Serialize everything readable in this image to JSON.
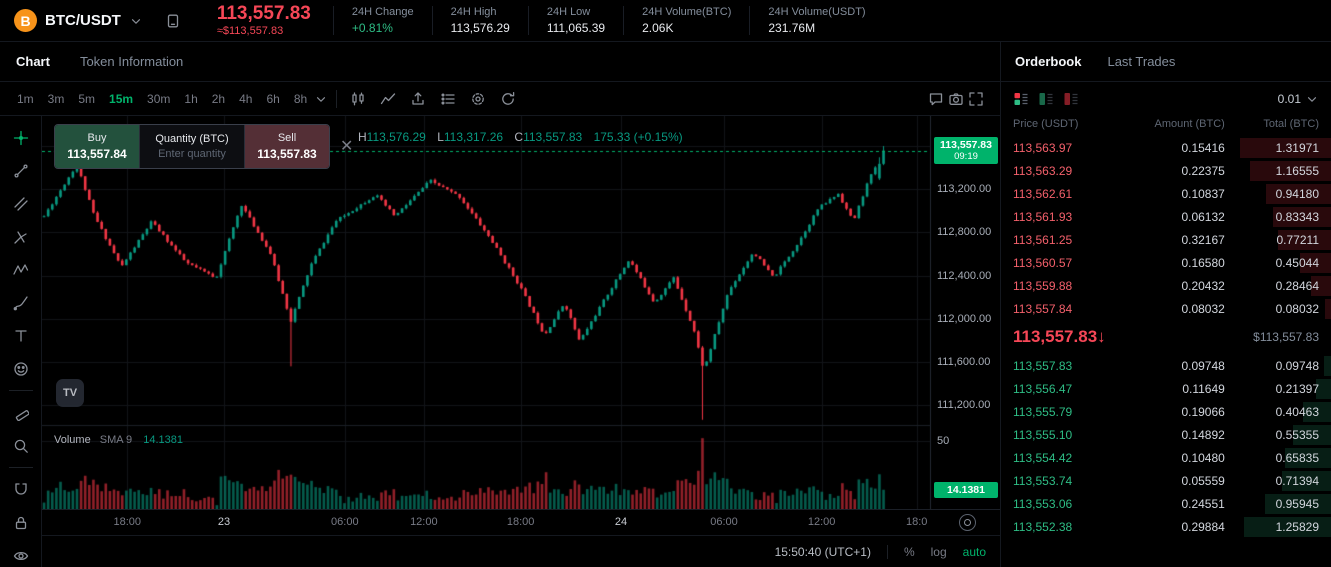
{
  "accent": "#00b36b",
  "colors": {
    "up": "#089981",
    "down": "#f23645",
    "red_text": "#f64757",
    "green_text": "#2ebd85"
  },
  "header": {
    "symbol": "BTC/USDT",
    "price": "113,557.83",
    "price_usd": "≈$113,557.83",
    "stats": [
      {
        "label": "24H Change",
        "value": "+0.81%",
        "tone": "green"
      },
      {
        "label": "24H High",
        "value": "113,576.29",
        "tone": "plain"
      },
      {
        "label": "24H Low",
        "value": "111,065.39",
        "tone": "plain"
      },
      {
        "label": "24H Volume(BTC)",
        "value": "2.06K",
        "tone": "plain"
      },
      {
        "label": "24H Volume(USDT)",
        "value": "231.76M",
        "tone": "plain"
      }
    ]
  },
  "tabs": {
    "chart": "Chart",
    "token_info": "Token Information",
    "orderbook": "Orderbook",
    "last_trades": "Last Trades"
  },
  "toolbar": {
    "timeframes": [
      "1m",
      "3m",
      "5m",
      "15m",
      "30m",
      "1h",
      "2h",
      "4h",
      "6h",
      "8h"
    ],
    "active_timeframe": "15m",
    "left_icons": [
      "candles",
      "indicators",
      "export",
      "layout-list",
      "gear",
      "refresh"
    ],
    "right_icons": [
      "chat",
      "snapshot",
      "fullscreen"
    ]
  },
  "drawing_tools": [
    "crosshair",
    "trend-line",
    "parallel-channel",
    "pitchfork",
    "xabcd-pattern",
    "brush",
    "text",
    "emoji",
    "ruler",
    "magnifier",
    "magnet",
    "lock",
    "eye"
  ],
  "chart": {
    "legend": {
      "h_label": "H",
      "h": "113,576.29",
      "l_label": "L",
      "l": "113,317.26",
      "c_label": "C",
      "c": "113,557.83",
      "change": "175.33 (+0.15%)"
    },
    "trade_widget": {
      "buy_label": "Buy",
      "buy_price": "113,557.84",
      "qty_label": "Quantity (BTC)",
      "qty_placeholder": "Enter quantity",
      "sell_label": "Sell",
      "sell_price": "113,557.83",
      "close": "✕"
    },
    "price_ticks": [
      {
        "p": 113200,
        "label": "113,200.00"
      },
      {
        "p": 112800,
        "label": "112,800.00"
      },
      {
        "p": 112400,
        "label": "112,400.00"
      },
      {
        "p": 112000,
        "label": "112,000.00"
      },
      {
        "p": 111600,
        "label": "111,600.00"
      },
      {
        "p": 111200,
        "label": "111,200.00"
      }
    ],
    "price_tag": {
      "price": "113,557.83",
      "time": "09:19"
    },
    "volume_legend": {
      "title": "Volume",
      "sub": "SMA 9",
      "value": "14.1381"
    },
    "volume_tick": {
      "v": 50,
      "label": "50"
    },
    "volume_tag": "14.1381",
    "time_ticks": [
      {
        "f": 0.096,
        "label": "18:00",
        "strong": false
      },
      {
        "f": 0.205,
        "label": "23",
        "strong": true
      },
      {
        "f": 0.341,
        "label": "06:00",
        "strong": false
      },
      {
        "f": 0.43,
        "label": "12:00",
        "strong": false
      },
      {
        "f": 0.539,
        "label": "18:00",
        "strong": false
      },
      {
        "f": 0.652,
        "label": "24",
        "strong": true
      },
      {
        "f": 0.768,
        "label": "06:00",
        "strong": false
      },
      {
        "f": 0.878,
        "label": "12:00",
        "strong": false
      },
      {
        "f": 0.985,
        "label": "18:0",
        "strong": false
      }
    ],
    "footer": {
      "clock": "15:50:40 (UTC+1)",
      "percent": "%",
      "log": "log",
      "auto": "auto"
    },
    "watermark": "TV"
  },
  "chart_data": {
    "type": "candlestick",
    "interval": "15m",
    "last_price": 113557.83,
    "last_open": 113435,
    "last_high": 113600,
    "last_volume": 14.1381,
    "price_range": [
      111054,
      113878
    ],
    "grid_prices": [
      113600,
      113200,
      112800,
      112400,
      112000,
      111600,
      111200
    ],
    "candle_count": 205,
    "price_path": [
      [
        0,
        112950
      ],
      [
        0.039,
        113430
      ],
      [
        0.06,
        112950
      ],
      [
        0.092,
        112480
      ],
      [
        0.128,
        112900
      ],
      [
        0.169,
        112520
      ],
      [
        0.205,
        112380
      ],
      [
        0.235,
        113060
      ],
      [
        0.27,
        112600
      ],
      [
        0.294,
        111980
      ],
      [
        0.318,
        112500
      ],
      [
        0.347,
        112900
      ],
      [
        0.395,
        113150
      ],
      [
        0.418,
        112950
      ],
      [
        0.46,
        113280
      ],
      [
        0.495,
        113130
      ],
      [
        0.531,
        112750
      ],
      [
        0.567,
        112300
      ],
      [
        0.596,
        111850
      ],
      [
        0.62,
        112150
      ],
      [
        0.638,
        111790
      ],
      [
        0.673,
        112250
      ],
      [
        0.697,
        112550
      ],
      [
        0.727,
        112150
      ],
      [
        0.75,
        112380
      ],
      [
        0.774,
        111900
      ],
      [
        0.786,
        111520
      ],
      [
        0.815,
        112250
      ],
      [
        0.845,
        112620
      ],
      [
        0.869,
        112380
      ],
      [
        0.898,
        112700
      ],
      [
        0.922,
        113020
      ],
      [
        0.946,
        113160
      ],
      [
        0.964,
        112900
      ],
      [
        0.981,
        113260
      ],
      [
        1,
        113557.83
      ]
    ],
    "wicks": [
      {
        "t": 0.786,
        "low": 111065.39
      },
      {
        "t": 0.294,
        "low": 111560
      },
      {
        "t": 0.039,
        "high": 113460
      }
    ],
    "vol_max": 58,
    "vol_spikes": [
      [
        0.02,
        20
      ],
      [
        0.294,
        25
      ],
      [
        0.531,
        16
      ],
      [
        0.596,
        27
      ],
      [
        0.638,
        18
      ],
      [
        0.786,
        52
      ],
      [
        0.922,
        14
      ],
      [
        0.981,
        18
      ]
    ]
  },
  "orderbook": {
    "precision": "0.01",
    "columns": [
      "Price (USDT)",
      "Amount (BTC)",
      "Total (BTC)"
    ],
    "asks": [
      [
        "113,563.97",
        "0.15416",
        "1.31971"
      ],
      [
        "113,563.29",
        "0.22375",
        "1.16555"
      ],
      [
        "113,562.61",
        "0.10837",
        "0.94180"
      ],
      [
        "113,561.93",
        "0.06132",
        "0.83343"
      ],
      [
        "113,561.25",
        "0.32167",
        "0.77211"
      ],
      [
        "113,560.57",
        "0.16580",
        "0.45044"
      ],
      [
        "113,559.88",
        "0.20432",
        "0.28464"
      ],
      [
        "113,557.84",
        "0.08032",
        "0.08032"
      ]
    ],
    "mid": {
      "price": "113,557.83",
      "arrow": "↓",
      "usd": "$113,557.83"
    },
    "bids": [
      [
        "113,557.83",
        "0.09748",
        "0.09748"
      ],
      [
        "113,556.47",
        "0.11649",
        "0.21397"
      ],
      [
        "113,555.79",
        "0.19066",
        "0.40463"
      ],
      [
        "113,555.10",
        "0.14892",
        "0.55355"
      ],
      [
        "113,554.42",
        "0.10480",
        "0.65835"
      ],
      [
        "113,553.74",
        "0.05559",
        "0.71394"
      ],
      [
        "113,553.06",
        "0.24551",
        "0.95945"
      ],
      [
        "113,552.38",
        "0.29884",
        "1.25829"
      ]
    ]
  }
}
